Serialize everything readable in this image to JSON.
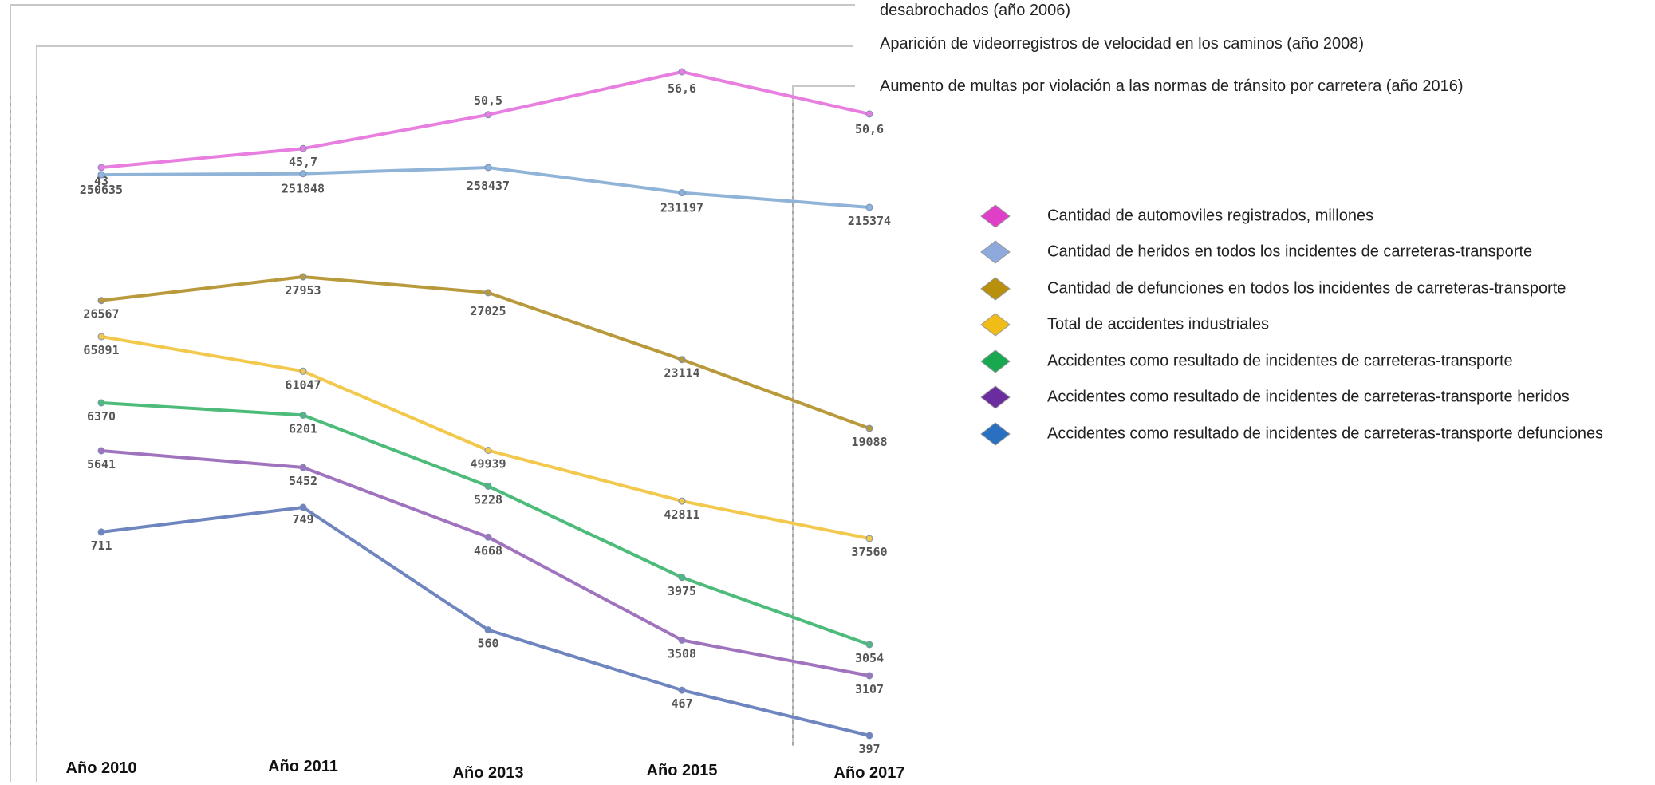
{
  "chart_data": {
    "type": "line",
    "categories": [
      "Año 2010",
      "Año 2011",
      "Año 2013",
      "Año 2015",
      "Año 2017"
    ],
    "series": [
      {
        "name": "Cantidad de automoviles registrados, millones",
        "values": [
          43,
          45.7,
          50.5,
          56.6,
          50.6
        ],
        "labels": [
          "43",
          "45,7",
          "50,5",
          "56,6",
          "50,6"
        ],
        "color": "#e87ee0"
      },
      {
        "name": "Cantidad de heridos en todos los incidentes de carreteras-transporte",
        "values": [
          250635,
          251848,
          258437,
          231197,
          215374
        ],
        "labels": [
          "250635",
          "251848",
          "258437",
          "231197",
          "215374"
        ],
        "color": "#8fb4d8"
      },
      {
        "name": "Cantidad de defunciones en todos los incidentes de carreteras-transporte",
        "values": [
          26567,
          27953,
          27025,
          23114,
          19088
        ],
        "labels": [
          "26567",
          "27953",
          "27025",
          "23114",
          "19088"
        ],
        "color": "#b89a3c"
      },
      {
        "name": "Total de accidentes industriales",
        "values": [
          65891,
          61047,
          49939,
          42811,
          37560
        ],
        "labels": [
          "65891",
          "61047",
          "49939",
          "42811",
          "37560"
        ],
        "color": "#f2c94c"
      },
      {
        "name": "Accidentes como resultado de incidentes de carreteras-transporte",
        "values": [
          6370,
          6201,
          5228,
          3975,
          3054
        ],
        "labels": [
          "6370",
          "6201",
          "5228",
          "3975",
          "3054"
        ],
        "color": "#4dbb7a"
      },
      {
        "name": "Accidentes como resultado de incidentes de carreteras-transporte heridos",
        "values": [
          5641,
          5452,
          4668,
          3508,
          3107
        ],
        "labels": [
          "5641",
          "5452",
          "4668",
          "3508",
          "3107"
        ],
        "color": "#a073be"
      },
      {
        "name": "Accidentes como resultado de incidentes de carreteras-transporte defunciones",
        "values": [
          711,
          749,
          560,
          467,
          397
        ],
        "labels": [
          "711",
          "749",
          "560",
          "467",
          "397"
        ],
        "color": "#6f85c0"
      }
    ],
    "legend_swatch_colors": [
      "#e040c8",
      "#8ea9dc",
      "#b8900e",
      "#f0bc18",
      "#18a850",
      "#6a2c9e",
      "#2a70c0"
    ],
    "annotations": [
      "desabrochados (año 2006)",
      "Aparición de videorregistros de velocidad en los caminos (año 2008)",
      "Aumento de multas por violación a las normas de tránsito por carretera (año 2016)"
    ],
    "legend_position": "right",
    "grid": false,
    "title": "",
    "xlabel": "",
    "ylabel": ""
  }
}
